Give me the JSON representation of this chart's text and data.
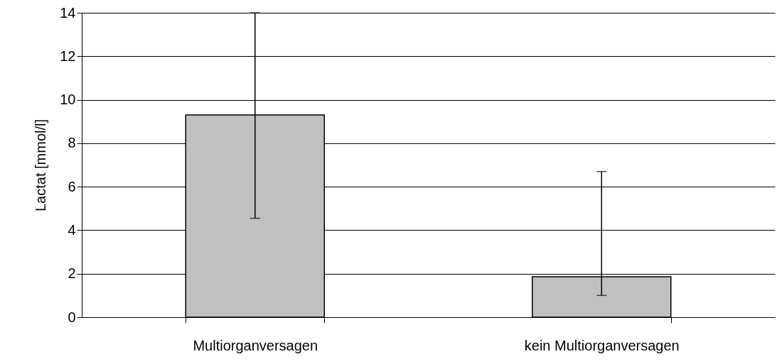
{
  "chart_data": {
    "type": "bar",
    "ylabel": "Lactat [mmol/l]",
    "categories": [
      "Multiorganversagen",
      "kein Multiorganversagen"
    ],
    "values": [
      9.3,
      1.86
    ],
    "color": "#c0c0c0",
    "errors": [
      [
        4.55,
        14
      ],
      [
        1.0,
        6.7
      ]
    ],
    "ylim": [
      0,
      14
    ],
    "yticks": [
      0,
      2,
      4,
      6,
      8,
      10,
      12,
      14
    ],
    "grid": "y"
  }
}
